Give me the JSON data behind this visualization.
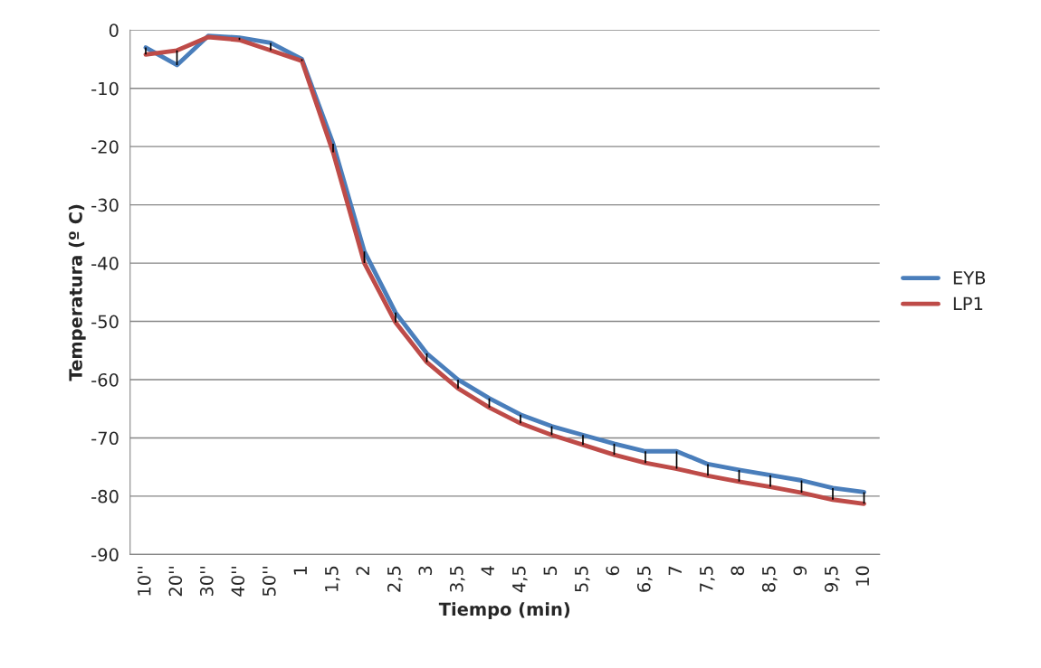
{
  "chart_data": {
    "type": "line",
    "xlabel": "Tiempo (min)",
    "ylabel": "Temperatura (º C)",
    "categories": [
      "10''",
      "20''",
      "30''",
      "40''",
      "50''",
      "1",
      "1,5",
      "2",
      "2,5",
      "3",
      "3,5",
      "4",
      "4,5",
      "5",
      "5,5",
      "6",
      "6,5",
      "7",
      "7,5",
      "8",
      "8,5",
      "9",
      "9,5",
      "10"
    ],
    "series": [
      {
        "name": "EYB",
        "color": "#4a7ebb",
        "values": [
          -3,
          -6,
          -1,
          -1.3,
          -2.2,
          -5,
          -19.5,
          -38,
          -48.5,
          -55.5,
          -60,
          -63.2,
          -66,
          -68,
          -69.5,
          -71,
          -72.3,
          -72.3,
          -74.5,
          -75.5,
          -76.4,
          -77.3,
          -78.6,
          -79.3
        ]
      },
      {
        "name": "LP1",
        "color": "#be4b48",
        "values": [
          -4.2,
          -3.5,
          -1.2,
          -1.7,
          -3.5,
          -5.3,
          -21,
          -40,
          -50.2,
          -57,
          -61.5,
          -64.8,
          -67.5,
          -69.5,
          -71.2,
          -72.9,
          -74.3,
          -75.3,
          -76.5,
          -77.5,
          -78.4,
          -79.4,
          -80.6,
          -81.3
        ],
        "errors": [
          [
            -4.2,
            -3
          ],
          [
            -6,
            -3.5
          ],
          null,
          [
            -1.7,
            -1.3
          ],
          [
            -3.5,
            -2.2
          ],
          [
            -5.3,
            -5
          ],
          [
            -21,
            -19.5
          ],
          [
            -40,
            -38
          ],
          [
            -50.2,
            -48.5
          ],
          [
            -57,
            -55.5
          ],
          [
            -61.5,
            -60
          ],
          [
            -64.8,
            -63.2
          ],
          [
            -67.5,
            -66
          ],
          [
            -69.5,
            -68
          ],
          [
            -71.2,
            -69.5
          ],
          [
            -72.9,
            -71
          ],
          [
            -74.3,
            -72.3
          ],
          [
            -75.3,
            -72.3
          ],
          [
            -76.5,
            -74.5
          ],
          [
            -77.5,
            -75.5
          ],
          [
            -78.4,
            -76.4
          ],
          [
            -79.4,
            -77.3
          ],
          [
            -80.6,
            -78.6
          ],
          [
            -81.3,
            -79.3
          ]
        ]
      }
    ],
    "ylim": [
      -90,
      0
    ],
    "yticks": [
      -90,
      -80,
      -70,
      -60,
      -50,
      -40,
      -30,
      -20,
      -10,
      0
    ],
    "grid": "y",
    "legend": "right"
  }
}
